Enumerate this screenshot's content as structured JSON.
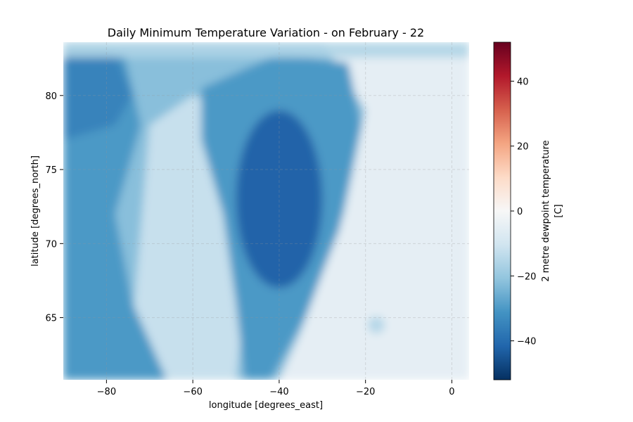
{
  "chart_data": {
    "type": "heatmap",
    "title": "Daily Minimum Temperature Variation - on February - 22",
    "xlabel": "longitude [degrees_east]",
    "ylabel": "latitude [degrees_north]",
    "xlim": [
      -90,
      4
    ],
    "ylim": [
      60.8,
      83.6
    ],
    "xticks": [
      -80,
      -60,
      -40,
      -20,
      0
    ],
    "yticks": [
      65,
      70,
      75,
      80
    ],
    "xtick_labels": [
      "−80",
      "−60",
      "−40",
      "−20",
      "0"
    ],
    "ytick_labels": [
      "65",
      "70",
      "75",
      "80"
    ],
    "grid": true,
    "colorbar": {
      "label_line1": "2 metre dewpoint temperature",
      "label_line2": "[C]",
      "range": [
        -52,
        52
      ],
      "ticks": [
        -40,
        -20,
        0,
        20,
        40
      ],
      "tick_labels": [
        "−40",
        "−20",
        "0",
        "20",
        "40"
      ],
      "colormap": "RdBu_r",
      "colors": [
        "#053061",
        "#2166ac",
        "#4393c3",
        "#92c5de",
        "#d1e5f0",
        "#f7f7f7",
        "#fddbc7",
        "#f4a582",
        "#d6604d",
        "#b2182b",
        "#67001f"
      ]
    },
    "field_description_values": {
      "greenland_interior_min": -42,
      "ice_sheet_margin": -30,
      "coastal_strip": -22,
      "open_ocean_east": -5,
      "baffin_region": -30,
      "northwest_land": -35,
      "iceland_spot": -15
    }
  }
}
